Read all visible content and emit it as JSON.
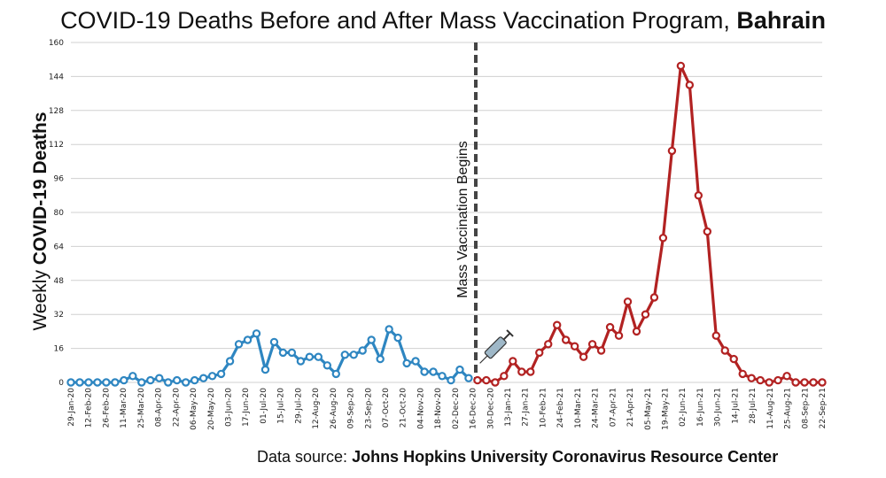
{
  "title": {
    "main": "COVID-19 Deaths Before and After Mass Vaccination Program, ",
    "bold": "Bahrain"
  },
  "ylabel": {
    "normal": "Weekly ",
    "bold": "COVID-19 Deaths"
  },
  "source": {
    "normal": "Data source: ",
    "bold": "Johns Hopkins University Coronavirus Resource Center"
  },
  "colors": {
    "before": "#2e86c1",
    "after": "#b22222",
    "grid": "#d0d0d0",
    "marker_line": "#444444"
  },
  "chart_data": {
    "type": "line",
    "title": "COVID-19 Deaths Before and After Mass Vaccination Program, Bahrain",
    "ylabel": "Weekly COVID-19 Deaths",
    "ylim": [
      0,
      160
    ],
    "yticks": [
      0,
      16,
      32,
      48,
      64,
      80,
      96,
      112,
      128,
      144,
      160
    ],
    "grid": true,
    "annotation": "Mass Vaccination Begins",
    "annotation_icon": "syringe-icon",
    "x_tick_labels": [
      "29-Jan-20",
      "12-Feb-20",
      "26-Feb-20",
      "11-Mar-20",
      "25-Mar-20",
      "08-Apr-20",
      "22-Apr-20",
      "06-May-20",
      "20-May-20",
      "03-Jun-20",
      "17-Jun-20",
      "01-Jul-20",
      "15-Jul-20",
      "29-Jul-20",
      "12-Aug-20",
      "26-Aug-20",
      "09-Sep-20",
      "23-Sep-20",
      "07-Oct-20",
      "21-Oct-20",
      "04-Nov-20",
      "18-Nov-20",
      "02-Dec-20",
      "16-Dec-20",
      "30-Dec-20",
      "13-Jan-21",
      "27-Jan-21",
      "10-Feb-21",
      "24-Feb-21",
      "10-Mar-21",
      "24-Mar-21",
      "07-Apr-21",
      "21-Apr-21",
      "05-May-21",
      "19-May-21",
      "02-Jun-21",
      "16-Jun-21",
      "30-Jun-21",
      "14-Jul-21",
      "28-Jul-21",
      "11-Aug-21",
      "25-Aug-21",
      "08-Sep-21",
      "22-Sep-21"
    ],
    "series": [
      {
        "values": [
          0,
          0,
          0,
          0,
          0,
          0,
          1,
          3,
          0,
          1,
          2,
          0,
          1,
          0,
          1,
          2,
          3,
          4,
          10,
          18,
          20,
          23,
          6,
          19,
          14,
          14,
          10,
          12,
          12,
          8,
          4,
          13,
          13,
          15,
          20,
          11,
          25,
          21,
          9,
          10,
          5,
          5,
          3,
          1,
          6,
          2
        ]
      },
      {
        "values": [
          1,
          1,
          0,
          3,
          10,
          5,
          5,
          14,
          18,
          27,
          20,
          17,
          12,
          18,
          15,
          26,
          22,
          38,
          24,
          32,
          40,
          68,
          109,
          149,
          140,
          88,
          71,
          22,
          15,
          11,
          4,
          2,
          1,
          0,
          1,
          3,
          0,
          0,
          0,
          0
        ]
      }
    ]
  }
}
